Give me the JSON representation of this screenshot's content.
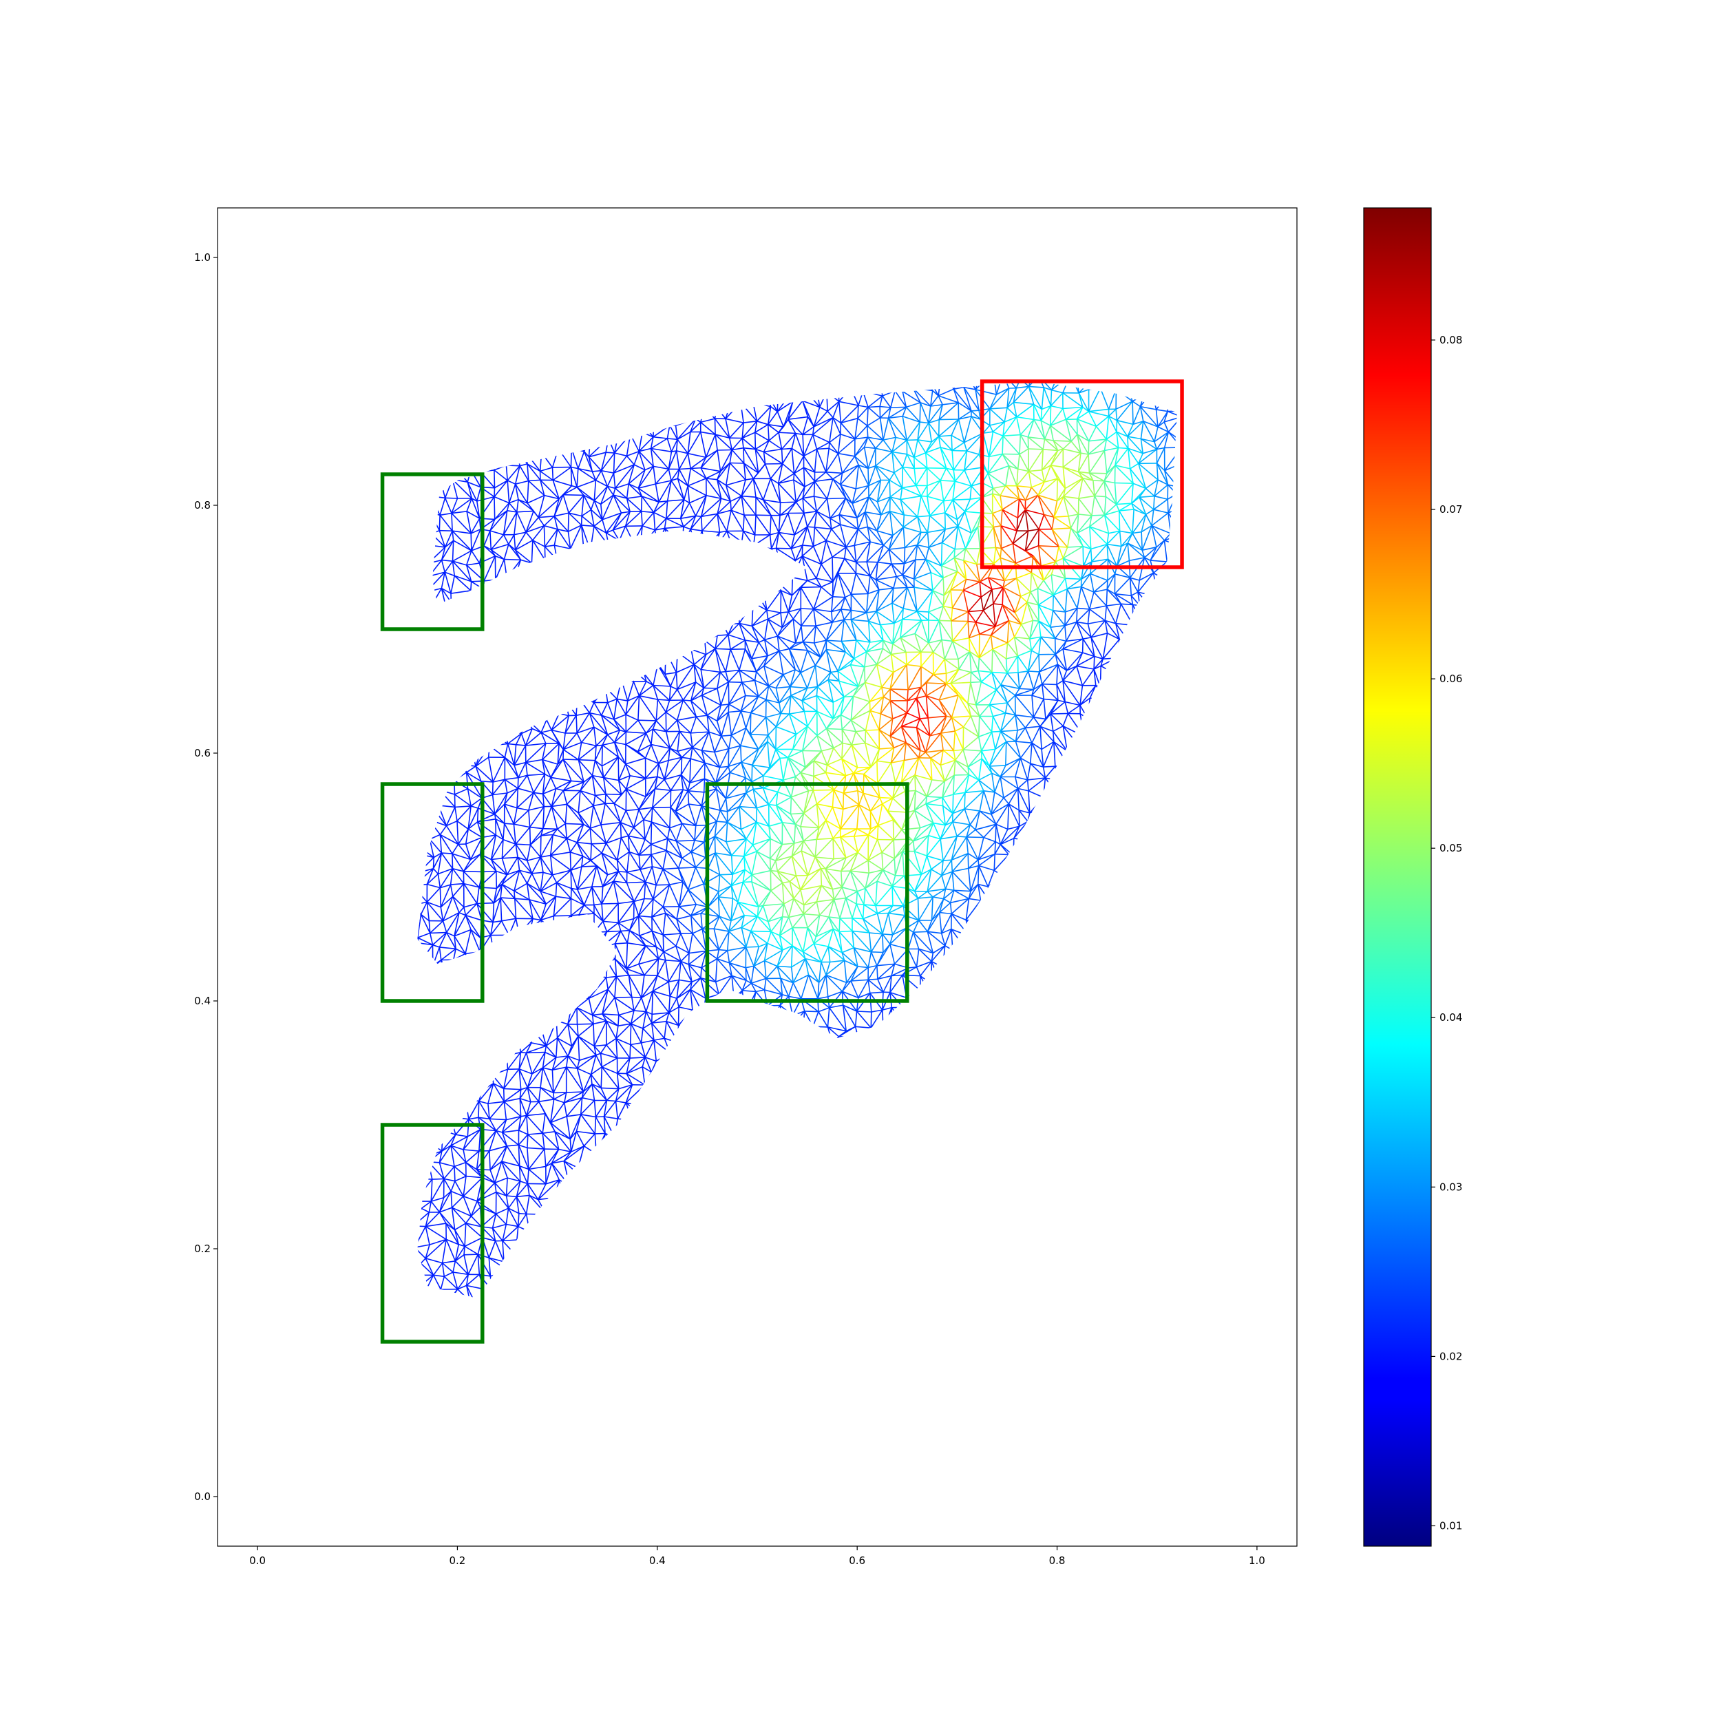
{
  "chart_data": {
    "type": "mesh-heatmap",
    "x_ticks": [
      "0.0",
      "0.2",
      "0.4",
      "0.6",
      "0.8",
      "1.0"
    ],
    "x_tick_values": [
      0.0,
      0.2,
      0.4,
      0.6,
      0.8,
      1.0
    ],
    "y_ticks": [
      "0.0",
      "0.2",
      "0.4",
      "0.6",
      "0.8",
      "1.0"
    ],
    "y_tick_values": [
      0.0,
      0.2,
      0.4,
      0.6,
      0.8,
      1.0
    ],
    "xlim": [
      -0.04,
      1.04
    ],
    "ylim": [
      -0.04,
      1.04
    ],
    "colormap": "jet",
    "colorbar": {
      "range": [
        0.0088,
        0.0878
      ],
      "ticks": [
        "0.01",
        "0.02",
        "0.03",
        "0.04",
        "0.05",
        "0.06",
        "0.07",
        "0.08"
      ],
      "tick_values": [
        0.01,
        0.02,
        0.03,
        0.04,
        0.05,
        0.06,
        0.07,
        0.08
      ]
    },
    "outline_polygons": [
      [
        [
          0.175,
          0.74
        ],
        [
          0.182,
          0.81
        ],
        [
          0.2,
          0.82
        ],
        [
          0.24,
          0.83
        ],
        [
          0.3,
          0.84
        ],
        [
          0.36,
          0.85
        ],
        [
          0.42,
          0.865
        ],
        [
          0.5,
          0.88
        ],
        [
          0.62,
          0.89
        ],
        [
          0.7,
          0.895
        ],
        [
          0.78,
          0.9
        ],
        [
          0.86,
          0.89
        ],
        [
          0.92,
          0.875
        ],
        [
          0.915,
          0.8
        ],
        [
          0.91,
          0.755
        ],
        [
          0.88,
          0.72
        ],
        [
          0.82,
          0.62
        ],
        [
          0.76,
          0.53
        ],
        [
          0.7,
          0.45
        ],
        [
          0.66,
          0.41
        ],
        [
          0.62,
          0.38
        ],
        [
          0.58,
          0.37
        ],
        [
          0.54,
          0.39
        ],
        [
          0.5,
          0.4
        ],
        [
          0.47,
          0.41
        ],
        [
          0.43,
          0.39
        ],
        [
          0.4,
          0.35
        ],
        [
          0.36,
          0.3
        ],
        [
          0.31,
          0.26
        ],
        [
          0.27,
          0.22
        ],
        [
          0.22,
          0.16
        ],
        [
          0.17,
          0.17
        ],
        [
          0.16,
          0.2
        ],
        [
          0.165,
          0.24
        ],
        [
          0.18,
          0.28
        ],
        [
          0.22,
          0.32
        ],
        [
          0.26,
          0.36
        ],
        [
          0.3,
          0.38
        ],
        [
          0.34,
          0.41
        ],
        [
          0.36,
          0.44
        ],
        [
          0.33,
          0.47
        ],
        [
          0.26,
          0.46
        ],
        [
          0.22,
          0.44
        ],
        [
          0.18,
          0.43
        ],
        [
          0.16,
          0.45
        ],
        [
          0.17,
          0.52
        ],
        [
          0.19,
          0.57
        ],
        [
          0.22,
          0.595
        ],
        [
          0.27,
          0.62
        ],
        [
          0.33,
          0.64
        ],
        [
          0.38,
          0.66
        ],
        [
          0.43,
          0.68
        ],
        [
          0.47,
          0.7
        ],
        [
          0.52,
          0.73
        ],
        [
          0.55,
          0.75
        ],
        [
          0.5,
          0.77
        ],
        [
          0.42,
          0.78
        ],
        [
          0.33,
          0.77
        ],
        [
          0.26,
          0.75
        ],
        [
          0.21,
          0.73
        ],
        [
          0.18,
          0.72
        ]
      ]
    ],
    "hotspots": [
      {
        "x": 0.77,
        "y": 0.78,
        "value": 0.086,
        "rx": 0.05,
        "ry": 0.05
      },
      {
        "x": 0.73,
        "y": 0.72,
        "value": 0.085,
        "rx": 0.05,
        "ry": 0.05
      },
      {
        "x": 0.66,
        "y": 0.63,
        "value": 0.078,
        "rx": 0.07,
        "ry": 0.07
      },
      {
        "x": 0.6,
        "y": 0.56,
        "value": 0.062,
        "rx": 0.09,
        "ry": 0.09
      },
      {
        "x": 0.55,
        "y": 0.5,
        "value": 0.054,
        "rx": 0.08,
        "ry": 0.07
      },
      {
        "x": 0.8,
        "y": 0.82,
        "value": 0.055,
        "rx": 0.09,
        "ry": 0.07
      },
      {
        "x": 0.68,
        "y": 0.82,
        "value": 0.04,
        "rx": 0.07,
        "ry": 0.06
      }
    ],
    "boxes": [
      {
        "color": "#008000",
        "x0": 0.125,
        "x1": 0.225,
        "y0": 0.7,
        "y1": 0.825
      },
      {
        "color": "#008000",
        "x0": 0.125,
        "x1": 0.225,
        "y0": 0.4,
        "y1": 0.575
      },
      {
        "color": "#008000",
        "x0": 0.125,
        "x1": 0.225,
        "y0": 0.125,
        "y1": 0.3
      },
      {
        "color": "#008000",
        "x0": 0.45,
        "x1": 0.65,
        "y0": 0.4,
        "y1": 0.575
      },
      {
        "color": "#ff0000",
        "x0": 0.725,
        "x1": 0.925,
        "y0": 0.75,
        "y1": 0.9
      }
    ]
  }
}
